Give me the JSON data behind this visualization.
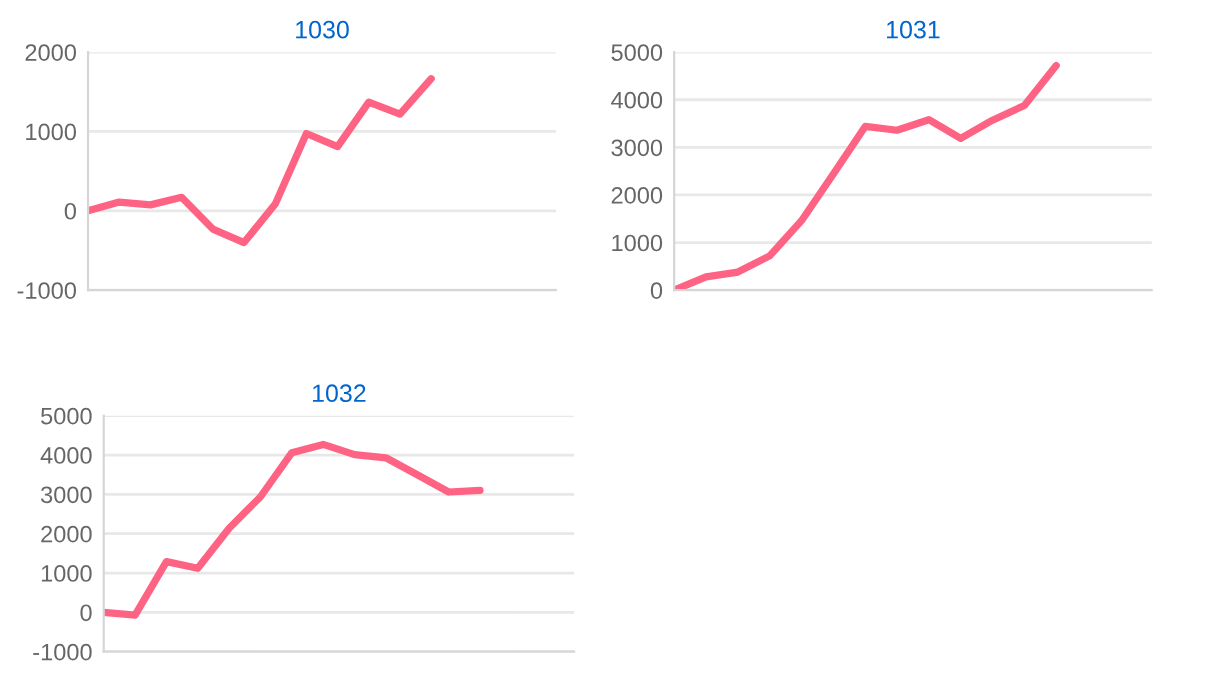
{
  "chart_data": [
    {
      "type": "line",
      "title": "1030",
      "categories": [
        null,
        null,
        null,
        null,
        null,
        null,
        null,
        null,
        null,
        null,
        null,
        null,
        null,
        null,
        null,
        null
      ],
      "series": [
        {
          "color": "#ff6384",
          "values": [
            0,
            110,
            75,
            170,
            -230,
            -400,
            85,
            975,
            810,
            1370,
            1220,
            1665,
            null,
            null,
            null,
            null
          ]
        }
      ],
      "ylim": [
        -1000,
        2000
      ],
      "yticks": [
        -1000,
        0,
        1000,
        2000
      ],
      "grid": "y",
      "tick_labels": "y",
      "marker": "none",
      "line_style": "solid"
    },
    {
      "type": "line",
      "title": "1031",
      "categories": [
        null,
        null,
        null,
        null,
        null,
        null,
        null,
        null,
        null,
        null,
        null,
        null,
        null,
        null,
        null,
        null
      ],
      "series": [
        {
          "color": "#ff6384",
          "values": [
            0,
            280,
            380,
            720,
            1460,
            2440,
            3440,
            3360,
            3580,
            3190,
            3570,
            3880,
            4720,
            null,
            null,
            null
          ]
        }
      ],
      "ylim": [
        0,
        5000
      ],
      "yticks": [
        0,
        1000,
        2000,
        3000,
        4000,
        5000
      ],
      "grid": "y",
      "tick_labels": "y",
      "marker": "none",
      "line_style": "solid"
    },
    {
      "type": "line",
      "title": "1032",
      "categories": [
        null,
        null,
        null,
        null,
        null,
        null,
        null,
        null,
        null,
        null,
        null,
        null,
        null,
        null,
        null,
        null
      ],
      "series": [
        {
          "color": "#ff6384",
          "values": [
            0,
            -70,
            1290,
            1120,
            2140,
            2940,
            4060,
            4270,
            4010,
            3930,
            3500,
            3060,
            3100,
            null,
            null,
            null
          ]
        }
      ],
      "ylim": [
        -1000,
        5000
      ],
      "yticks": [
        -1000,
        0,
        1000,
        2000,
        3000,
        4000,
        5000
      ],
      "grid": "y",
      "tick_labels": "y",
      "marker": "none",
      "line_style": "solid"
    }
  ]
}
